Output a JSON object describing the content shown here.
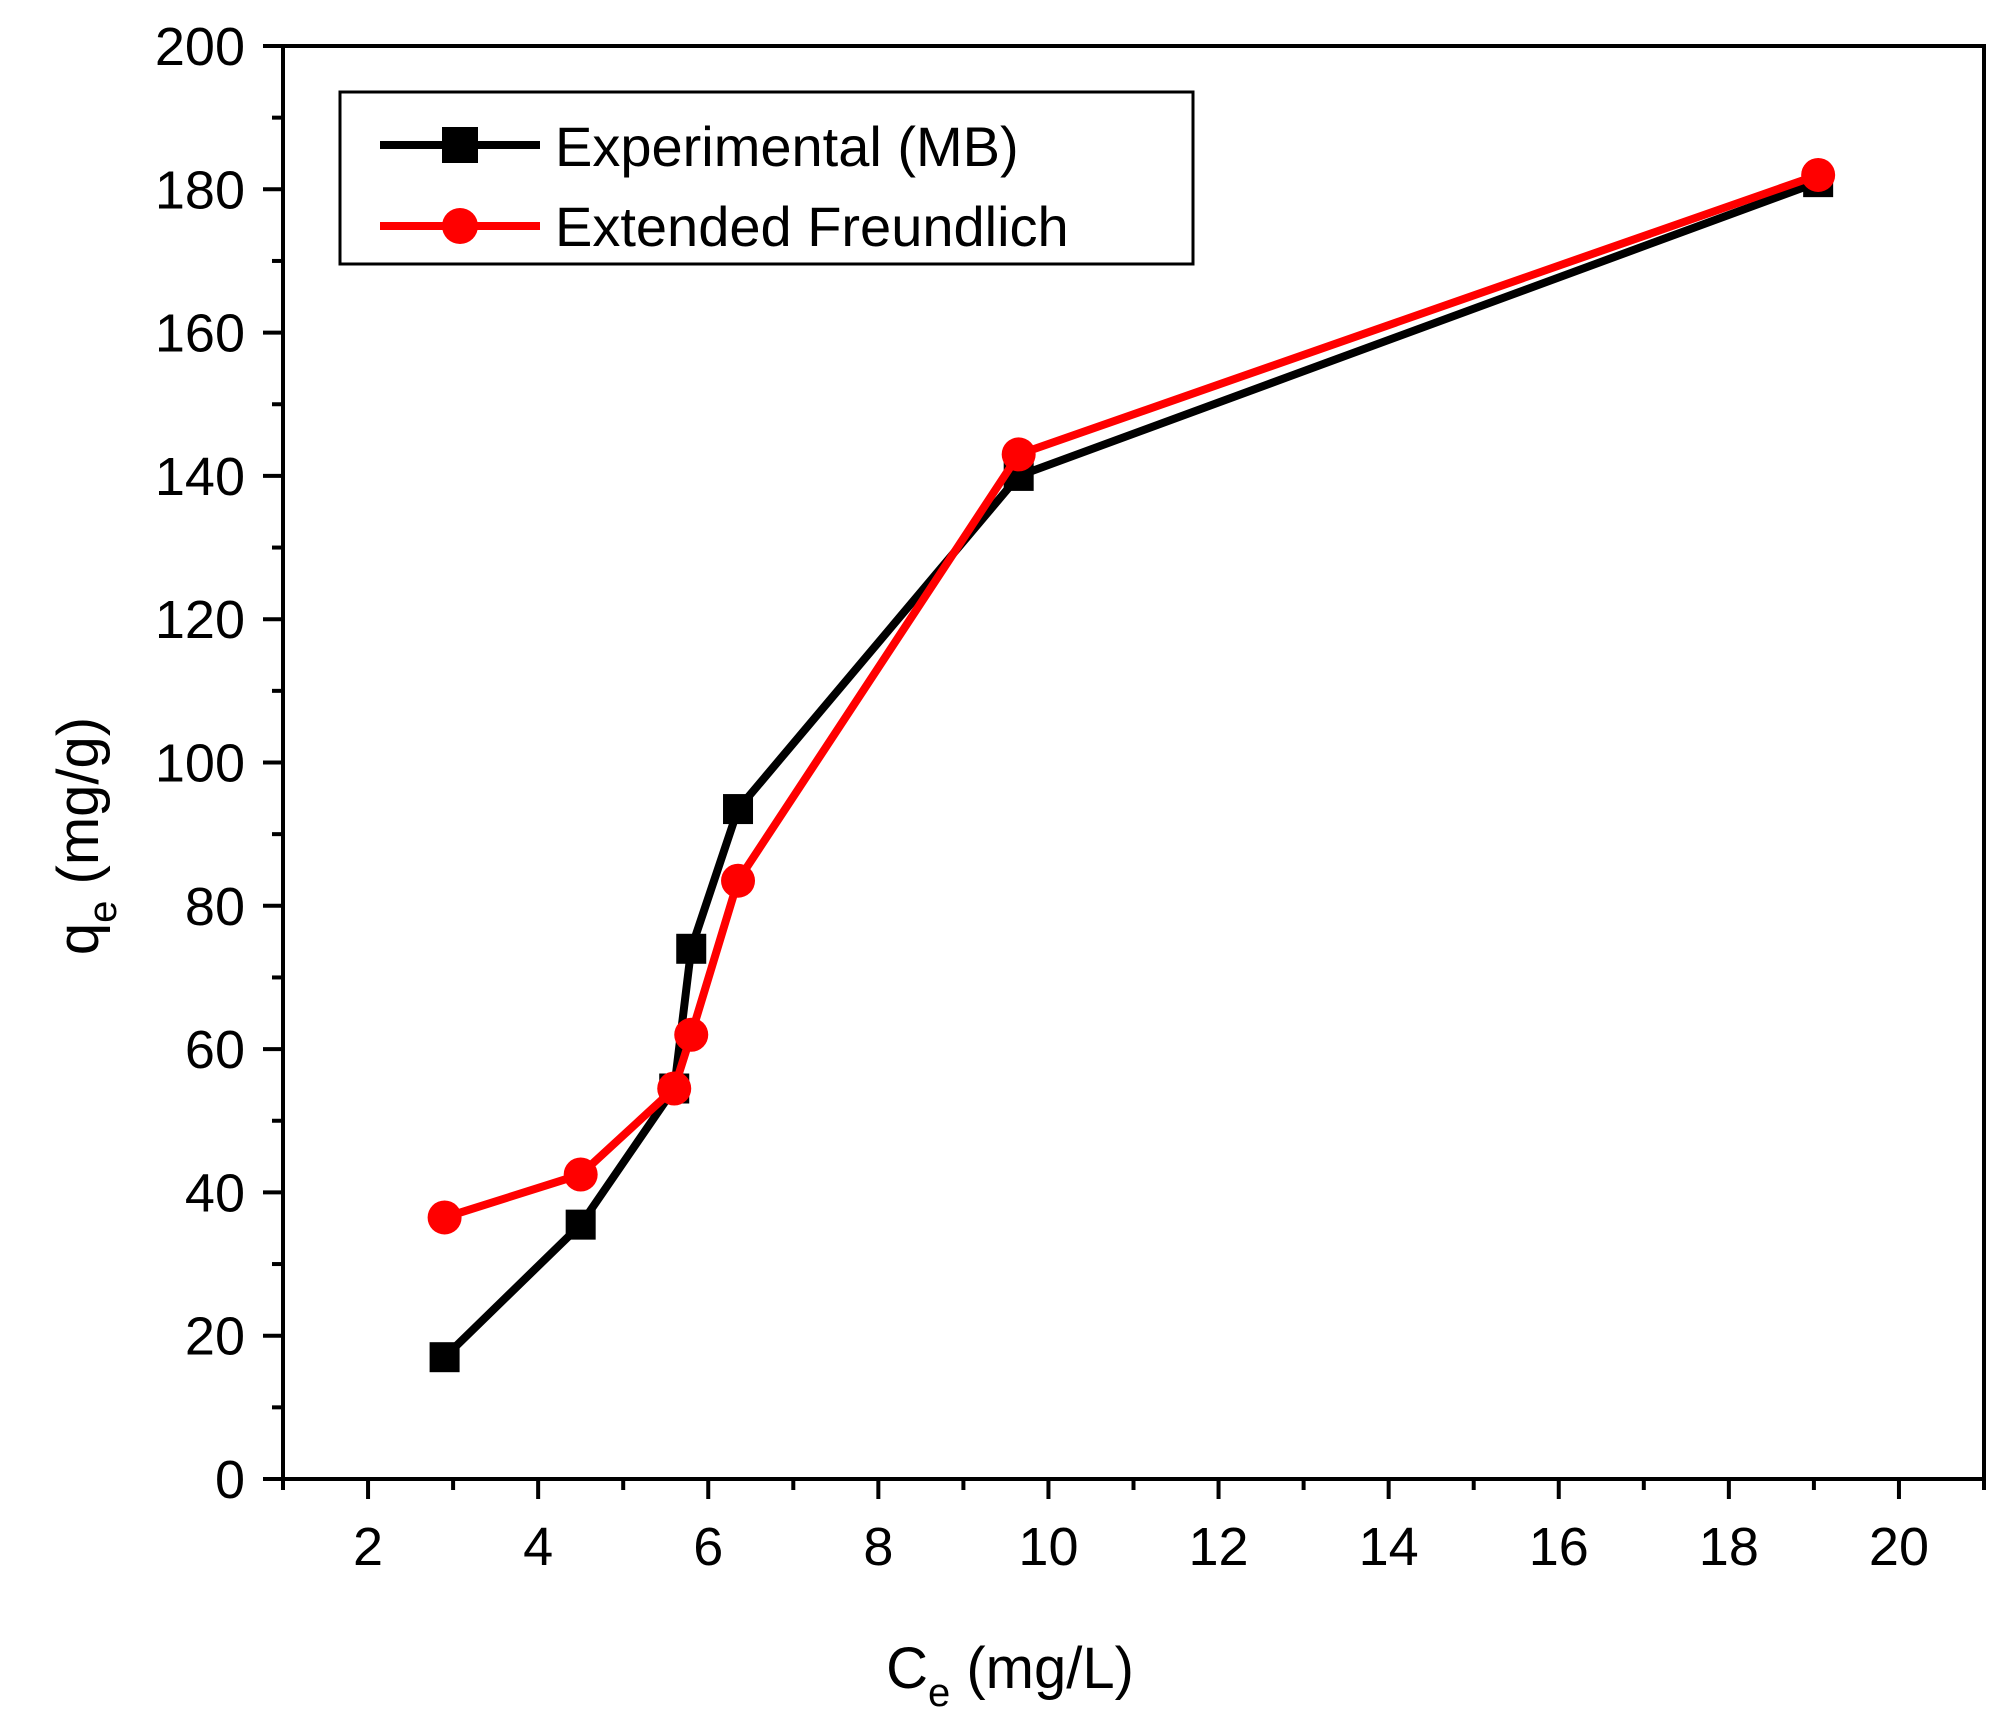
{
  "chart_data": {
    "type": "line",
    "title": "",
    "xlabel": {
      "main": "C",
      "sub": "e",
      "unit": " (mg/L)"
    },
    "ylabel": {
      "main": "q",
      "sub": "e",
      "unit": " (mg/g)"
    },
    "xlim": [
      1,
      21
    ],
    "ylim": [
      0,
      200
    ],
    "xticks": [
      2,
      4,
      6,
      8,
      10,
      12,
      14,
      16,
      18,
      20
    ],
    "yticks": [
      0,
      20,
      40,
      60,
      80,
      100,
      120,
      140,
      160,
      180,
      200
    ],
    "legend_position": "top-left",
    "series": [
      {
        "name": "Experimental (MB)",
        "color": "#000000",
        "marker": "square",
        "x": [
          2.9,
          4.5,
          5.6,
          5.8,
          6.35,
          9.65,
          19.05
        ],
        "y": [
          17,
          35.5,
          54.5,
          74,
          93.5,
          140,
          181
        ]
      },
      {
        "name": "Extended Freundlich",
        "color": "#ff0000",
        "marker": "circle",
        "x": [
          2.9,
          4.5,
          5.6,
          5.8,
          6.35,
          9.65,
          19.05
        ],
        "y": [
          36.5,
          42.5,
          54.5,
          62,
          83.5,
          143,
          182
        ]
      }
    ]
  }
}
